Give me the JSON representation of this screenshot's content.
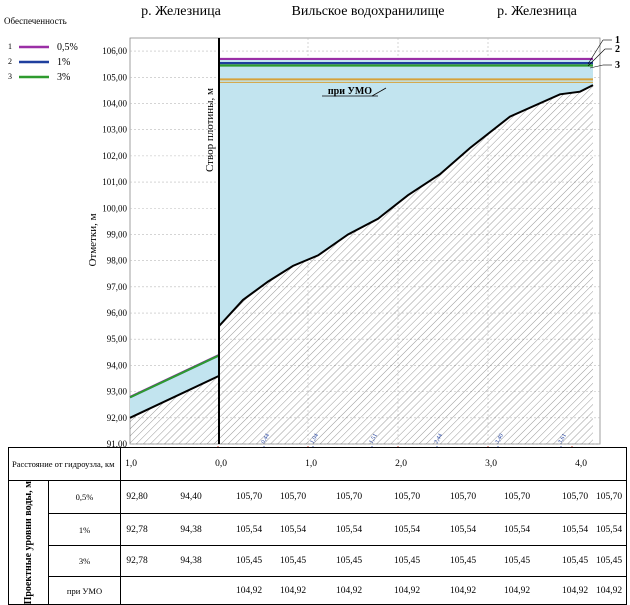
{
  "header": {
    "left_river": "р. Железница",
    "center": "Вильское водохранилище",
    "right_river": "р. Железница"
  },
  "legend": {
    "title": "Обеспеченность",
    "items": [
      {
        "num": "1",
        "label": "0,5%",
        "color": "#9b2fa6"
      },
      {
        "num": "2",
        "label": "1%",
        "color": "#1f3f9e"
      },
      {
        "num": "3",
        "label": "3%",
        "color": "#2e9b2e"
      }
    ]
  },
  "annotations": {
    "dam_label": "Створ плотины, м",
    "umo_label": "при УМО",
    "callouts": [
      "1",
      "2",
      "3"
    ]
  },
  "colors": {
    "water": "#c2e4ef",
    "umo": "#d6a23a",
    "bed": "#000000"
  },
  "chart_data": {
    "type": "line",
    "ylabel": "Отметки, м",
    "xlabel": "",
    "ylim": [
      91,
      106.5
    ],
    "yticks": [
      "106,00",
      "105,00",
      "104,00",
      "103,00",
      "102,00",
      "101,00",
      "100,00",
      "99,00",
      "98,00",
      "97,00",
      "96,00",
      "95,00",
      "94,00",
      "93,00",
      "92,00",
      "91,00"
    ],
    "chainage_marks": [
      "0,44",
      "1,04",
      "1,51",
      "2,44",
      "3,40",
      "3,61"
    ],
    "series": [
      {
        "name": "0,5%",
        "upstream": [
          105.7,
          105.7
        ],
        "downstream": [
          92.8,
          94.4
        ]
      },
      {
        "name": "1%",
        "upstream": [
          105.54,
          105.54
        ],
        "downstream": [
          92.78,
          94.38
        ]
      },
      {
        "name": "3%",
        "upstream": [
          105.45,
          105.45
        ],
        "downstream": [
          92.78,
          94.38
        ]
      },
      {
        "name": "при УМО",
        "upstream": [
          104.92,
          104.92
        ]
      }
    ],
    "bed_profile": {
      "downstream": [
        92.0,
        93.6
      ],
      "upstream": [
        95.5,
        96.5,
        97.2,
        97.8,
        98.2,
        99.0,
        99.6,
        100.5,
        101.3,
        102.3,
        103.5,
        104.35,
        104.45,
        104.7
      ]
    }
  },
  "table": {
    "distance_label": "Расстояние от гидроузла, км",
    "distance_values": [
      "1,0",
      "0,0",
      "1,0",
      "2,0",
      "3,0",
      "4,0"
    ],
    "side_header": "Проектные уровни воды, м",
    "rows": [
      {
        "label": "0,5%",
        "values": [
          "92,80",
          "94,40",
          "105,70",
          "105,70",
          "105,70",
          "105,70",
          "105,70",
          "105,70",
          "105,70",
          "105,70"
        ]
      },
      {
        "label": "1%",
        "values": [
          "92,78",
          "94,38",
          "105,54",
          "105,54",
          "105,54",
          "105,54",
          "105,54",
          "105,54",
          "105,54",
          "105,54"
        ]
      },
      {
        "label": "3%",
        "values": [
          "92,78",
          "94,38",
          "105,45",
          "105,45",
          "105,45",
          "105,45",
          "105,45",
          "105,45",
          "105,45",
          "105,45"
        ]
      },
      {
        "label": "при УМО",
        "values": [
          "",
          "",
          "104,92",
          "104,92",
          "104,92",
          "104,92",
          "104,92",
          "104,92",
          "104,92",
          "104,92"
        ]
      }
    ]
  }
}
